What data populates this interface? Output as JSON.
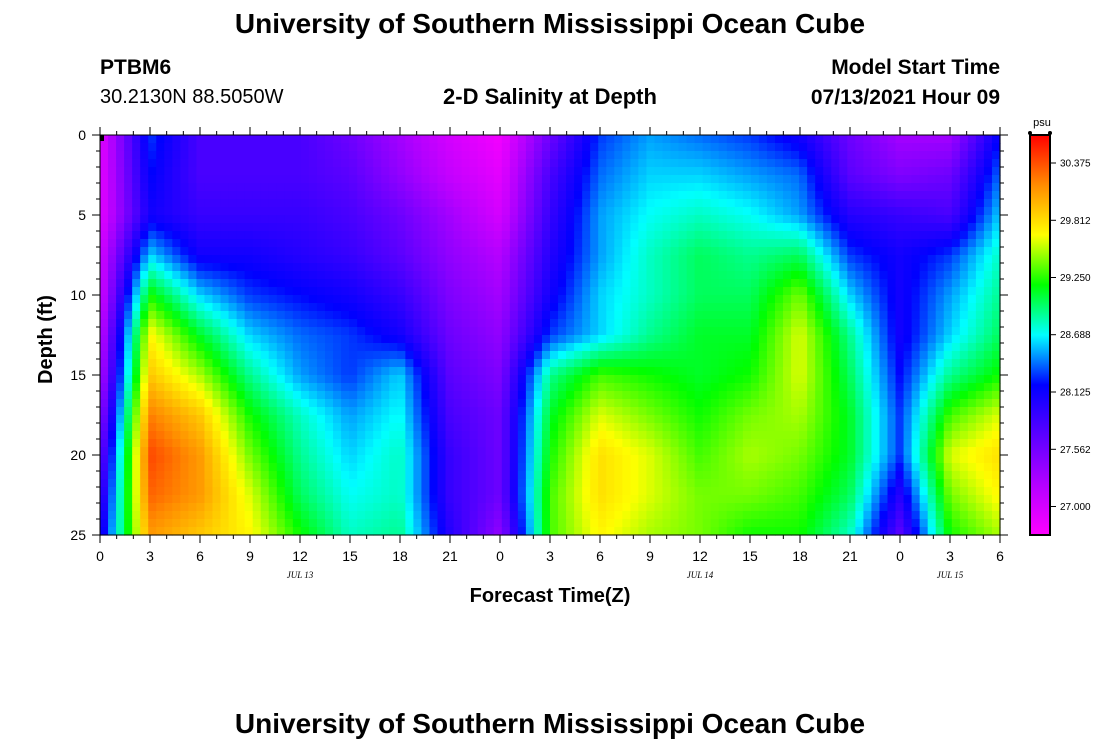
{
  "page": {
    "title_top": "University of Southern Mississippi Ocean Cube",
    "title_bottom": "University of Southern Mississippi Ocean Cube",
    "station": "PTBM6",
    "coords": "30.2130N  88.5050W",
    "chart_title": "2-D Salinity at Depth",
    "model_label": "Model Start Time",
    "model_time": "07/13/2021 Hour 09"
  },
  "chart_data": {
    "type": "heatmap",
    "title": "2-D Salinity at Depth",
    "xlabel": "Forecast Time(Z)",
    "ylabel": "Depth (ft)",
    "x_ticks": [
      "0",
      "3",
      "6",
      "9",
      "12",
      "15",
      "18",
      "21",
      "0",
      "3",
      "6",
      "9",
      "12",
      "15",
      "18",
      "21",
      "0",
      "3",
      "6"
    ],
    "x_range_hours_from_jul13_00z": [
      0,
      54
    ],
    "y_ticks": [
      "0",
      "5",
      "10",
      "15",
      "20",
      "25"
    ],
    "y_range_ft": [
      0,
      25
    ],
    "date_labels": [
      {
        "text": "JUL 13",
        "hour": 12
      },
      {
        "text": "JUL 14",
        "hour": 36
      },
      {
        "text": "JUL 15",
        "hour": 51
      }
    ],
    "colorbar": {
      "unit": "psu",
      "min": 26.72,
      "max": 30.65,
      "ticks": [
        "30.375",
        "29.812",
        "29.250",
        "28.688",
        "28.125",
        "27.562",
        "27.000"
      ],
      "tick_values": [
        30.375,
        29.812,
        29.25,
        28.688,
        28.125,
        27.562,
        27.0
      ]
    },
    "salinity_psu_depth_by_time": {
      "hours": [
        0,
        3,
        6,
        9,
        12,
        15,
        18,
        21,
        24,
        27,
        30,
        33,
        36,
        39,
        42,
        45,
        48,
        51,
        54
      ],
      "depths_ft": [
        0,
        2.5,
        5,
        7.5,
        10,
        12.5,
        15,
        17.5,
        20,
        22.5,
        25
      ],
      "values": [
        [
          26.9,
          28.3,
          27.8,
          27.8,
          27.8,
          27.6,
          27.3,
          27.0,
          26.8,
          27.6,
          28.3,
          28.5,
          28.4,
          28.3,
          28.1,
          27.6,
          27.3,
          27.3,
          28.2
        ],
        [
          26.9,
          28.2,
          27.8,
          27.8,
          27.8,
          27.7,
          27.4,
          27.1,
          26.9,
          27.8,
          28.4,
          28.6,
          28.6,
          28.5,
          28.4,
          27.7,
          27.5,
          27.6,
          28.4
        ],
        [
          26.9,
          28.1,
          27.9,
          27.9,
          27.9,
          27.8,
          27.6,
          27.3,
          27.0,
          27.9,
          28.5,
          28.7,
          28.8,
          28.7,
          28.5,
          28.0,
          27.9,
          27.8,
          28.6
        ],
        [
          27.0,
          28.6,
          28.1,
          28.1,
          28.0,
          27.9,
          27.7,
          27.4,
          27.2,
          28.0,
          28.5,
          28.8,
          29.0,
          28.9,
          29.0,
          28.3,
          28.1,
          28.3,
          28.8
        ],
        [
          27.0,
          29.2,
          28.6,
          28.3,
          28.2,
          28.1,
          27.9,
          27.5,
          27.3,
          28.1,
          28.6,
          28.8,
          29.0,
          29.0,
          29.4,
          28.6,
          28.1,
          28.5,
          28.9
        ],
        [
          27.1,
          29.7,
          29.1,
          28.6,
          28.4,
          28.3,
          28.1,
          27.6,
          27.4,
          28.3,
          28.6,
          28.9,
          29.1,
          29.1,
          29.6,
          28.9,
          28.1,
          28.6,
          29.0
        ],
        [
          27.2,
          29.9,
          29.5,
          28.9,
          28.5,
          28.3,
          28.6,
          27.7,
          27.5,
          28.9,
          29.3,
          29.2,
          29.1,
          29.2,
          29.6,
          29.0,
          28.2,
          28.9,
          29.2
        ],
        [
          27.4,
          30.2,
          29.9,
          29.2,
          28.8,
          28.5,
          28.7,
          27.8,
          27.6,
          29.1,
          29.6,
          29.4,
          29.2,
          29.4,
          29.5,
          29.1,
          28.3,
          29.3,
          29.6
        ],
        [
          27.6,
          30.4,
          30.1,
          29.4,
          28.9,
          28.6,
          28.8,
          27.9,
          27.6,
          29.2,
          29.8,
          29.6,
          29.3,
          29.5,
          29.4,
          29.1,
          28.3,
          29.6,
          29.8
        ],
        [
          27.8,
          30.3,
          30.1,
          29.6,
          29.0,
          28.7,
          28.8,
          27.9,
          27.6,
          29.3,
          29.8,
          29.6,
          29.4,
          29.4,
          29.3,
          29.0,
          28.0,
          29.4,
          29.7
        ],
        [
          28.0,
          30.1,
          29.9,
          29.7,
          29.2,
          28.8,
          28.9,
          28.0,
          27.4,
          29.3,
          29.7,
          29.5,
          29.4,
          29.2,
          29.2,
          28.8,
          27.7,
          29.2,
          29.5
        ]
      ]
    }
  }
}
